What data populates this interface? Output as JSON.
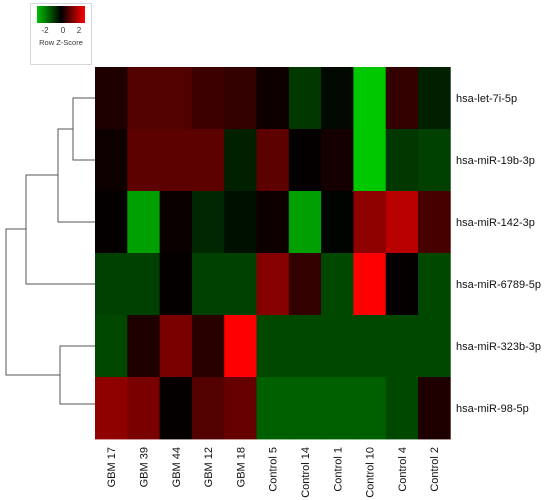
{
  "color_key": {
    "ticks": [
      "-2",
      "0",
      "2"
    ],
    "label": "Row Z-Score",
    "colors": {
      "low": "#00c000",
      "mid": "#000000",
      "high": "#ff0000"
    }
  },
  "chart_data": {
    "type": "heatmap",
    "title": "",
    "xlabel": "",
    "ylabel": "",
    "zlim": [
      -2.5,
      2.5
    ],
    "rows": [
      "hsa-let-7i-5p",
      "hsa-miR-19b-3p",
      "hsa-miR-142-3p",
      "hsa-miR-6789-5p",
      "hsa-miR-323b-3p",
      "hsa-miR-98-5p"
    ],
    "columns": [
      "GBM 17",
      "GBM 39",
      "GBM 44",
      "GBM 12",
      "GBM 18",
      "Control 5",
      "Control 14",
      "Control 1",
      "Control 10",
      "Control 4",
      "Control 2"
    ],
    "values": [
      [
        0.3,
        0.8,
        0.8,
        0.6,
        0.5,
        0.15,
        -0.7,
        -0.1,
        -2.5,
        0.5,
        -0.4
      ],
      [
        0.15,
        0.9,
        0.9,
        0.9,
        -0.4,
        0.9,
        0.05,
        0.2,
        -2.5,
        -0.7,
        -0.8
      ],
      [
        0.05,
        -2.0,
        0.1,
        -0.5,
        -0.2,
        0.15,
        -2.0,
        -0.05,
        1.4,
        1.8,
        0.7
      ],
      [
        -0.8,
        -0.8,
        0.05,
        -0.8,
        -0.8,
        1.3,
        0.5,
        -0.9,
        2.5,
        0.05,
        -0.9
      ],
      [
        -0.9,
        0.3,
        1.2,
        0.4,
        2.5,
        -0.9,
        -0.9,
        -0.9,
        -0.9,
        -0.9,
        -0.9
      ],
      [
        1.4,
        1.2,
        0.05,
        0.8,
        1.0,
        -1.2,
        -1.2,
        -1.2,
        -1.2,
        -0.9,
        0.3
      ]
    ]
  }
}
